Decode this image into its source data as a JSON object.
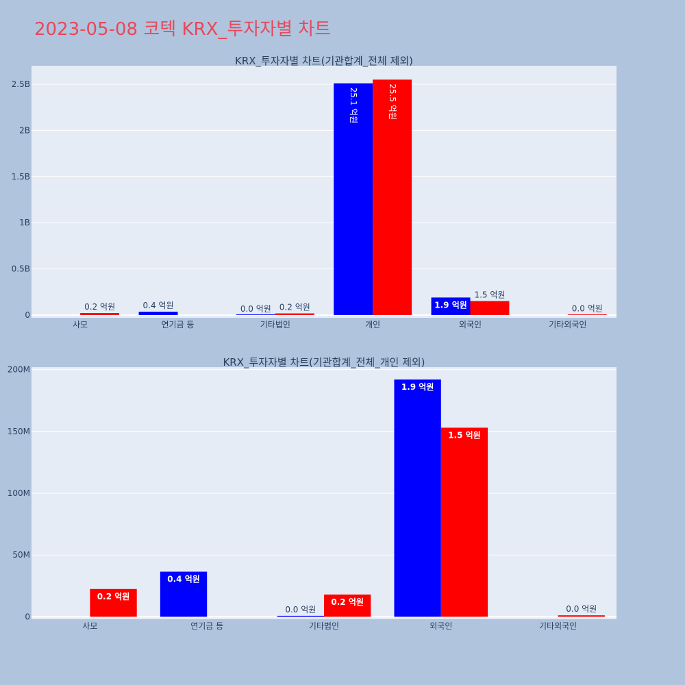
{
  "page_title": "2023-05-08 코텍 KRX_투자자별 차트",
  "colors": {
    "background": "#b0c4de",
    "plot_bg": "#e5ecf6",
    "series_a": "#0000ff",
    "series_b": "#ff0000",
    "title": "#e8485a"
  },
  "chart_data": [
    {
      "type": "bar",
      "title": "KRX_투자자별 차트(기관합계_전체 제외)",
      "categories": [
        "사모",
        "연기금 등",
        "기타법인",
        "개인",
        "외국인",
        "기타외국인"
      ],
      "ylim": [
        -30000000,
        2700000000
      ],
      "yticks": [
        0,
        500000000,
        1000000000,
        1500000000,
        2000000000,
        2500000000
      ],
      "ytick_labels": [
        "0",
        "0.5B",
        "1B",
        "1.5B",
        "2B",
        "2.5B"
      ],
      "grid": true,
      "series": [
        {
          "color": "#0000ff",
          "values": [
            null,
            36000000,
            1000000,
            2510000000,
            190000000,
            null
          ],
          "labels": [
            "",
            "0.4 억원",
            "0.0 억원",
            "25.1 억원",
            "1.9 억원",
            ""
          ]
        },
        {
          "color": "#ff0000",
          "values": [
            22000000,
            null,
            18000000,
            2550000000,
            152000000,
            2000000
          ],
          "labels": [
            "0.2 억원",
            "",
            "0.2 억원",
            "25.5 억원",
            "1.5 억원",
            "0.0 억원"
          ]
        }
      ]
    },
    {
      "type": "bar",
      "title": "KRX_투자자별 차트(기관합계_전체_개인 제외)",
      "categories": [
        "사모",
        "연기금 등",
        "기타법인",
        "외국인",
        "기타외국인"
      ],
      "ylim": [
        -2000000,
        202000000
      ],
      "yticks": [
        0,
        50000000,
        100000000,
        150000000,
        200000000
      ],
      "ytick_labels": [
        "0",
        "50M",
        "100M",
        "150M",
        "200M"
      ],
      "grid": true,
      "series": [
        {
          "color": "#0000ff",
          "values": [
            null,
            36500000,
            800000,
            192000000,
            null
          ],
          "labels": [
            "",
            "0.4 억원",
            "0.0 억원",
            "1.9 억원",
            ""
          ]
        },
        {
          "color": "#ff0000",
          "values": [
            22500000,
            null,
            18000000,
            153000000,
            1200000
          ],
          "labels": [
            "0.2 억원",
            "",
            "0.2 억원",
            "1.5 억원",
            "0.0 억원"
          ]
        }
      ]
    }
  ]
}
